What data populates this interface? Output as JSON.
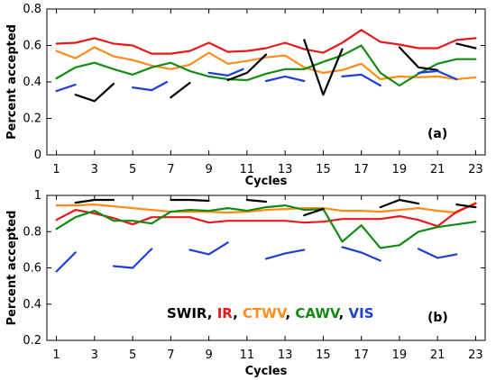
{
  "figure": {
    "panels": [
      {
        "label": "(a)",
        "ylabel": "Percent accepted",
        "xlabel": "Cycles"
      },
      {
        "label": "(b)",
        "ylabel": "Percent accepted",
        "xlabel": "Cycles"
      }
    ],
    "legend": [
      {
        "text": "SWIR",
        "color": "#000000"
      },
      {
        "text": ", ",
        "color": "#000000"
      },
      {
        "text": "IR",
        "color": "#e41a1c"
      },
      {
        "text": ", ",
        "color": "#000000"
      },
      {
        "text": "CTWV",
        "color": "#ff8c1a"
      },
      {
        "text": ", ",
        "color": "#000000"
      },
      {
        "text": "CAWV",
        "color": "#138a13"
      },
      {
        "text": ", ",
        "color": "#000000"
      },
      {
        "text": "VIS",
        "color": "#1f3fd6"
      }
    ]
  },
  "chart_data": [
    {
      "type": "line",
      "title": "",
      "panel_label": "(a)",
      "xlabel": "Cycles",
      "ylabel": "Percent accepted",
      "xlim": [
        0.5,
        23.5
      ],
      "ylim": [
        0,
        0.8
      ],
      "xticks": [
        1,
        3,
        5,
        7,
        9,
        11,
        13,
        15,
        17,
        19,
        21,
        23
      ],
      "yticks": [
        0,
        0.2,
        0.4,
        0.6,
        0.8
      ],
      "series": [
        {
          "key": "IR",
          "color": "#e41a1c",
          "points": [
            [
              1,
              0.61
            ],
            [
              2,
              0.615
            ],
            [
              3,
              0.64
            ],
            [
              4,
              0.61
            ],
            [
              5,
              0.6
            ],
            [
              6,
              0.555
            ],
            [
              7,
              0.555
            ],
            [
              8,
              0.57
            ],
            [
              9,
              0.615
            ],
            [
              10,
              0.565
            ],
            [
              11,
              0.57
            ],
            [
              12,
              0.585
            ],
            [
              13,
              0.615
            ],
            [
              14,
              0.58
            ],
            [
              15,
              0.56
            ],
            [
              16,
              0.615
            ],
            [
              17,
              0.685
            ],
            [
              18,
              0.62
            ],
            [
              19,
              0.605
            ],
            [
              20,
              0.585
            ],
            [
              21,
              0.585
            ],
            [
              22,
              0.63
            ],
            [
              23,
              0.64
            ]
          ]
        },
        {
          "key": "CTWV",
          "color": "#ff8c1a",
          "points": [
            [
              1,
              0.57
            ],
            [
              2,
              0.53
            ],
            [
              3,
              0.59
            ],
            [
              4,
              0.54
            ],
            [
              5,
              0.52
            ],
            [
              6,
              0.49
            ],
            [
              7,
              0.47
            ],
            [
              8,
              0.495
            ],
            [
              9,
              0.56
            ],
            [
              10,
              0.5
            ],
            [
              11,
              0.515
            ],
            [
              12,
              0.535
            ],
            [
              13,
              0.545
            ],
            [
              14,
              0.48
            ],
            [
              15,
              0.45
            ],
            [
              16,
              0.465
            ],
            [
              17,
              0.5
            ],
            [
              18,
              0.415
            ],
            [
              19,
              0.43
            ],
            [
              20,
              0.425
            ],
            [
              21,
              0.43
            ],
            [
              22,
              0.415
            ],
            [
              23,
              0.425
            ]
          ]
        },
        {
          "key": "CAWV",
          "color": "#138a13",
          "points": [
            [
              1,
              0.42
            ],
            [
              2,
              0.48
            ],
            [
              3,
              0.505
            ],
            [
              4,
              0.47
            ],
            [
              5,
              0.44
            ],
            [
              6,
              0.48
            ],
            [
              7,
              0.505
            ],
            [
              8,
              0.46
            ],
            [
              9,
              0.43
            ],
            [
              10,
              0.415
            ],
            [
              11,
              0.41
            ],
            [
              12,
              0.445
            ],
            [
              13,
              0.47
            ],
            [
              14,
              0.47
            ],
            [
              15,
              0.51
            ],
            [
              16,
              0.545
            ],
            [
              17,
              0.6
            ],
            [
              18,
              0.45
            ],
            [
              19,
              0.38
            ],
            [
              20,
              0.445
            ],
            [
              21,
              0.5
            ],
            [
              22,
              0.525
            ],
            [
              23,
              0.525
            ]
          ]
        },
        {
          "key": "SWIR",
          "color": "#000000",
          "points": [
            [
              2,
              0.33
            ],
            [
              3,
              0.295
            ],
            [
              4,
              0.39
            ],
            [
              null,
              null
            ],
            [
              7,
              0.315
            ],
            [
              8,
              0.395
            ],
            [
              null,
              null
            ],
            [
              10,
              0.41
            ],
            [
              11,
              0.45
            ],
            [
              12,
              0.55
            ],
            [
              null,
              null
            ],
            [
              14,
              0.63
            ],
            [
              15,
              0.33
            ],
            [
              16,
              0.58
            ],
            [
              null,
              null
            ],
            [
              19,
              0.59
            ],
            [
              20,
              0.48
            ],
            [
              21,
              0.465
            ],
            [
              null,
              null
            ],
            [
              22,
              0.61
            ],
            [
              23,
              0.585
            ]
          ]
        },
        {
          "key": "VIS",
          "color": "#1f3fd6",
          "points": [
            [
              1,
              0.35
            ],
            [
              2,
              0.385
            ],
            [
              null,
              null
            ],
            [
              5,
              0.37
            ],
            [
              6,
              0.355
            ],
            [
              6.8,
              0.4
            ],
            [
              null,
              null
            ],
            [
              9,
              0.45
            ],
            [
              10,
              0.435
            ],
            [
              10.8,
              0.47
            ],
            [
              null,
              null
            ],
            [
              12,
              0.405
            ],
            [
              13,
              0.43
            ],
            [
              14,
              0.405
            ],
            [
              null,
              null
            ],
            [
              16,
              0.43
            ],
            [
              17,
              0.44
            ],
            [
              18,
              0.38
            ],
            [
              null,
              null
            ],
            [
              20,
              0.45
            ],
            [
              21,
              0.46
            ],
            [
              22,
              0.415
            ]
          ]
        }
      ]
    },
    {
      "type": "line",
      "title": "",
      "panel_label": "(b)",
      "xlabel": "Cycles",
      "ylabel": "Percent accepted",
      "xlim": [
        0.5,
        23.5
      ],
      "ylim": [
        0.2,
        1
      ],
      "xticks": [
        1,
        3,
        5,
        7,
        9,
        11,
        13,
        15,
        17,
        19,
        21,
        23
      ],
      "yticks": [
        0.2,
        0.4,
        0.6,
        0.8,
        1
      ],
      "series": [
        {
          "key": "CTWV",
          "color": "#ff8c1a",
          "points": [
            [
              1,
              0.945
            ],
            [
              2,
              0.945
            ],
            [
              3,
              0.95
            ],
            [
              4,
              0.94
            ],
            [
              5,
              0.93
            ],
            [
              6,
              0.92
            ],
            [
              7,
              0.91
            ],
            [
              8,
              0.91
            ],
            [
              9,
              0.91
            ],
            [
              10,
              0.905
            ],
            [
              11,
              0.91
            ],
            [
              12,
              0.92
            ],
            [
              13,
              0.925
            ],
            [
              14,
              0.93
            ],
            [
              15,
              0.93
            ],
            [
              16,
              0.915
            ],
            [
              17,
              0.915
            ],
            [
              18,
              0.91
            ],
            [
              19,
              0.92
            ],
            [
              20,
              0.93
            ],
            [
              21,
              0.915
            ],
            [
              22,
              0.905
            ],
            [
              23,
              0.96
            ]
          ]
        },
        {
          "key": "IR",
          "color": "#e41a1c",
          "points": [
            [
              1,
              0.865
            ],
            [
              2,
              0.92
            ],
            [
              3,
              0.9
            ],
            [
              4,
              0.875
            ],
            [
              5,
              0.84
            ],
            [
              6,
              0.88
            ],
            [
              7,
              0.88
            ],
            [
              8,
              0.88
            ],
            [
              9,
              0.85
            ],
            [
              10,
              0.86
            ],
            [
              11,
              0.86
            ],
            [
              12,
              0.86
            ],
            [
              13,
              0.86
            ],
            [
              14,
              0.85
            ],
            [
              15,
              0.855
            ],
            [
              16,
              0.87
            ],
            [
              17,
              0.87
            ],
            [
              18,
              0.87
            ],
            [
              19,
              0.885
            ],
            [
              20,
              0.865
            ],
            [
              21,
              0.83
            ],
            [
              22,
              0.91
            ],
            [
              23,
              0.955
            ]
          ]
        },
        {
          "key": "CAWV",
          "color": "#138a13",
          "points": [
            [
              1,
              0.815
            ],
            [
              2,
              0.88
            ],
            [
              3,
              0.915
            ],
            [
              4,
              0.86
            ],
            [
              5,
              0.86
            ],
            [
              6,
              0.845
            ],
            [
              7,
              0.91
            ],
            [
              8,
              0.92
            ],
            [
              9,
              0.915
            ],
            [
              10,
              0.93
            ],
            [
              11,
              0.915
            ],
            [
              12,
              0.935
            ],
            [
              13,
              0.945
            ],
            [
              14,
              0.92
            ],
            [
              15,
              0.925
            ],
            [
              16,
              0.745
            ],
            [
              17,
              0.835
            ],
            [
              18,
              0.71
            ],
            [
              19,
              0.725
            ],
            [
              20,
              0.8
            ],
            [
              21,
              0.825
            ],
            [
              22,
              0.84
            ],
            [
              23,
              0.855
            ]
          ]
        },
        {
          "key": "SWIR",
          "color": "#000000",
          "points": [
            [
              2,
              0.96
            ],
            [
              3,
              0.975
            ],
            [
              4,
              0.975
            ],
            [
              null,
              null
            ],
            [
              7,
              0.975
            ],
            [
              8,
              0.975
            ],
            [
              9,
              0.97
            ],
            [
              null,
              null
            ],
            [
              11,
              0.975
            ],
            [
              12,
              0.965
            ],
            [
              null,
              null
            ],
            [
              14,
              0.89
            ],
            [
              15,
              0.925
            ],
            [
              null,
              null
            ],
            [
              18,
              0.935
            ],
            [
              19,
              0.975
            ],
            [
              20,
              0.955
            ],
            [
              null,
              null
            ],
            [
              22,
              0.95
            ],
            [
              23,
              0.935
            ]
          ]
        },
        {
          "key": "VIS",
          "color": "#1f3fd6",
          "points": [
            [
              1,
              0.58
            ],
            [
              2,
              0.685
            ],
            [
              null,
              null
            ],
            [
              4,
              0.61
            ],
            [
              5,
              0.6
            ],
            [
              6,
              0.705
            ],
            [
              null,
              null
            ],
            [
              8,
              0.7
            ],
            [
              9,
              0.675
            ],
            [
              10,
              0.74
            ],
            [
              null,
              null
            ],
            [
              12,
              0.65
            ],
            [
              13,
              0.68
            ],
            [
              14,
              0.7
            ],
            [
              null,
              null
            ],
            [
              16,
              0.715
            ],
            [
              17,
              0.685
            ],
            [
              18,
              0.64
            ],
            [
              null,
              null
            ],
            [
              20,
              0.705
            ],
            [
              21,
              0.655
            ],
            [
              22,
              0.675
            ]
          ]
        }
      ]
    }
  ]
}
